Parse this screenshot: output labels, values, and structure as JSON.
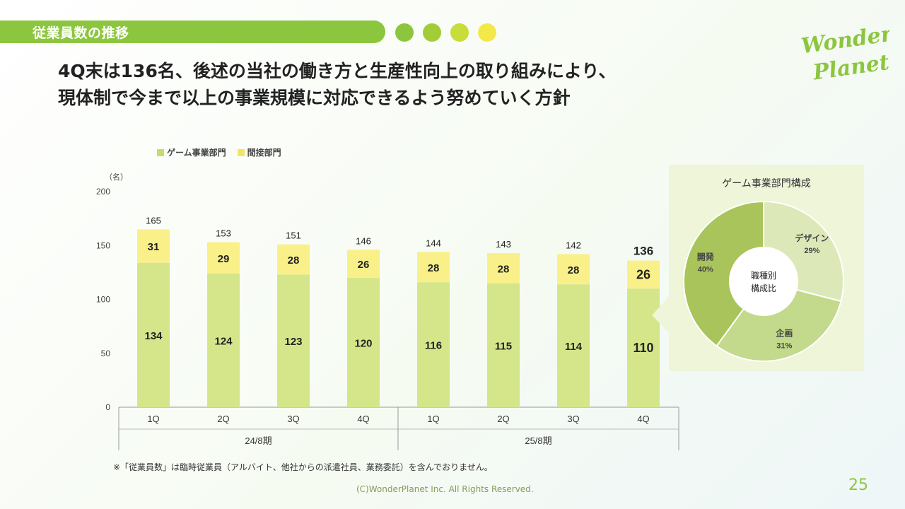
{
  "header": {
    "section_title": "従業員数の推移"
  },
  "headline": {
    "line1": "4Q末は136名、後述の当社の働き方と生産性向上の取り組みにより、",
    "line2": "現体制で今まで以上の事業規模に対応できるよう努めていく方針"
  },
  "logo": {
    "line1": "Wonder",
    "line2": "Planet"
  },
  "colors": {
    "brand_green": "#8cc63f",
    "dot1": "#8cc63f",
    "dot2": "#a3cd36",
    "dot3": "#c8dc3a",
    "dot4": "#f3e84a",
    "game_bar": "#d5e68a",
    "indirect_bar": "#faf08a"
  },
  "chart_data": {
    "type": "bar",
    "stacked": true,
    "unit_label": "（名）",
    "categories": [
      "1Q",
      "2Q",
      "3Q",
      "4Q",
      "1Q",
      "2Q",
      "3Q",
      "4Q"
    ],
    "groups": [
      {
        "label": "24/8期",
        "span": [
          0,
          3
        ]
      },
      {
        "label": "25/8期",
        "span": [
          4,
          7
        ]
      }
    ],
    "series": [
      {
        "name": "ゲーム事業部門",
        "values": [
          134,
          124,
          123,
          120,
          116,
          115,
          114,
          110
        ]
      },
      {
        "name": "間接部門",
        "values": [
          31,
          29,
          28,
          26,
          28,
          28,
          28,
          26
        ]
      }
    ],
    "totals": [
      165,
      153,
      151,
      146,
      144,
      143,
      142,
      136
    ],
    "highlight_index": 7,
    "ylim": [
      0,
      200
    ],
    "yticks": [
      0,
      50,
      100,
      150,
      200
    ]
  },
  "pie": {
    "title": "ゲーム事業部門構成",
    "center_label_line1": "職種別",
    "center_label_line2": "構成比",
    "slices": [
      {
        "label": "デザイン",
        "pct_label": "29%",
        "value": 29,
        "color": "#dde8b8"
      },
      {
        "label": "企画",
        "pct_label": "31%",
        "value": 31,
        "color": "#c3d98b"
      },
      {
        "label": "開発",
        "pct_label": "40%",
        "value": 40,
        "color": "#a9c45a"
      }
    ]
  },
  "footer": {
    "note": "※「従業員数」は臨時従業員（アルバイト、他社からの派遣社員、業務委託）を含んでおりません。",
    "copyright": "(C)WonderPlanet Inc.  All Rights Reserved.",
    "page_number": "25"
  }
}
